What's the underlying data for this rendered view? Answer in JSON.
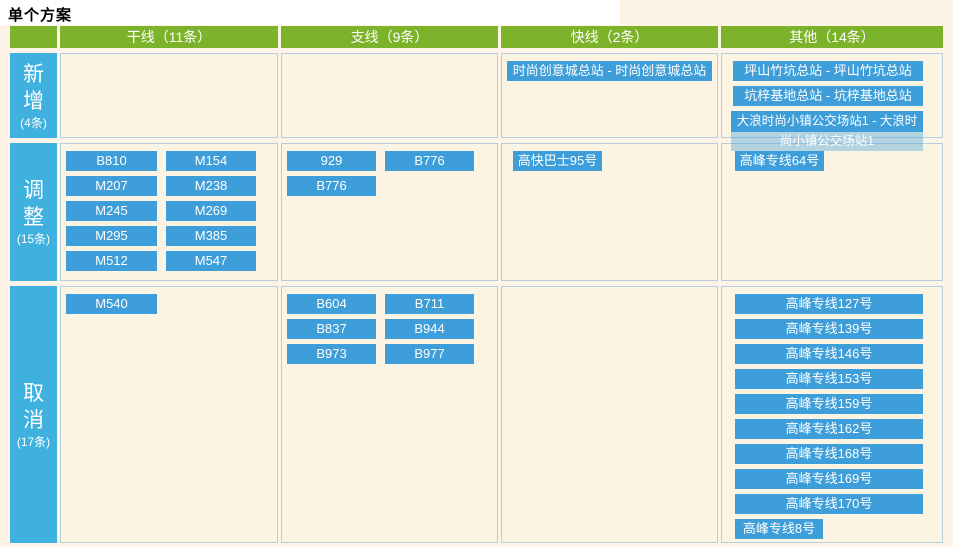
{
  "page": {
    "title": "单个方案"
  },
  "colors": {
    "header_green": "#7cb32a",
    "row_header_blue": "#3fb1df",
    "button_blue": "#3d9ed9",
    "cell_background": "#fbf4e3",
    "page_background": "#fdf3e7",
    "cell_border": "#b5cce1"
  },
  "table": {
    "columns": [
      "干线（11条）",
      "支线（9条）",
      "快线（2条）",
      "其他（14条）"
    ],
    "rows": [
      {
        "name": "新增",
        "count": "(4条)",
        "cells": {
          "trunk": [],
          "branch": [],
          "express": [
            "时尚创意城总站 - 时尚创意城总站"
          ],
          "other": [
            "坪山竹坑总站 - 坪山竹坑总站",
            "坑梓基地总站 - 坑梓基地总站",
            "大浪时尚小镇公交场站1 - 大浪时尚小镇公交场站1"
          ]
        }
      },
      {
        "name": "调整",
        "count": "(15条)",
        "cells": {
          "trunk": [
            "B810",
            "M154",
            "M207",
            "M238",
            "M245",
            "M269",
            "M295",
            "M385",
            "M512",
            "M547"
          ],
          "branch": [
            "929",
            "B776",
            "B776"
          ],
          "express": [
            "高快巴士95号"
          ],
          "other": [
            "高峰专线64号"
          ]
        }
      },
      {
        "name": "取消",
        "count": "(17条)",
        "cells": {
          "trunk": [
            "M540"
          ],
          "branch": [
            "B604",
            "B711",
            "B837",
            "B944",
            "B973",
            "B977"
          ],
          "express": [],
          "other": [
            "高峰专线127号",
            "高峰专线139号",
            "高峰专线146号",
            "高峰专线153号",
            "高峰专线159号",
            "高峰专线162号",
            "高峰专线168号",
            "高峰专线169号",
            "高峰专线170号",
            "高峰专线8号"
          ]
        }
      }
    ]
  }
}
